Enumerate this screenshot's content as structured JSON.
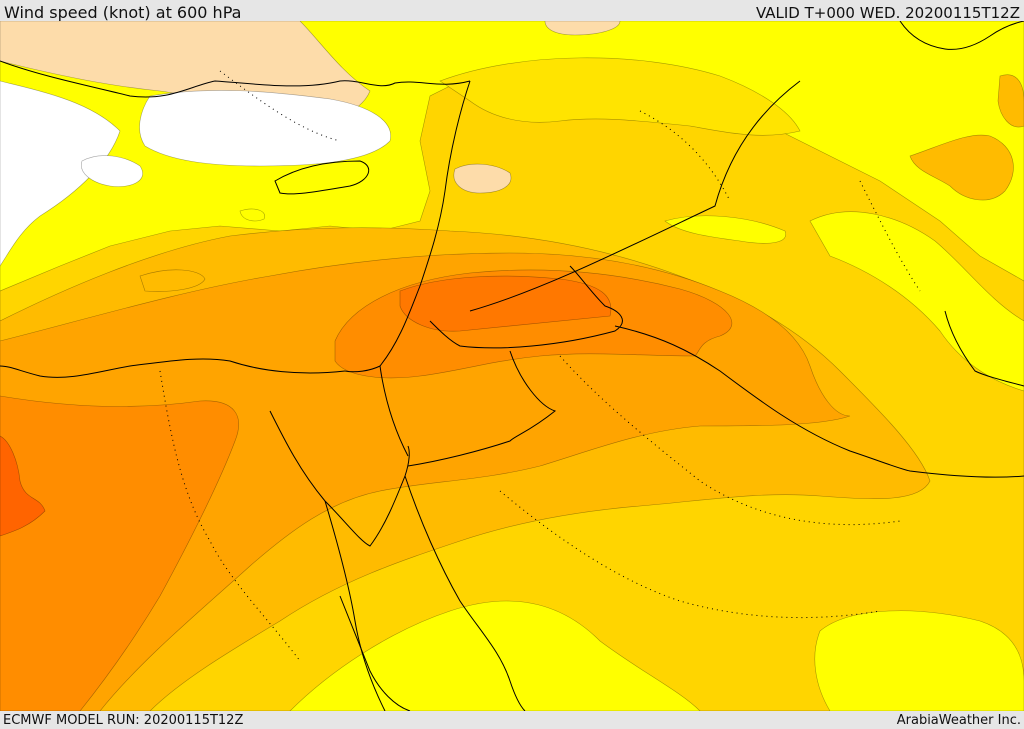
{
  "header": {
    "title": "Wind speed (knot) at 600 hPa",
    "valid": "VALID T+000 WED. 20200115T12Z"
  },
  "footer": {
    "model_run": "ECMWF MODEL RUN: 20200115T12Z",
    "credit": "ArabiaWeather Inc."
  },
  "map": {
    "variable": "wind speed",
    "level": "600 hPa",
    "unit": "knot",
    "colors": {
      "white": "#ffffff",
      "peach": "#fddcaa",
      "yellow_bright": "#ffff00",
      "yellow": "#ffe400",
      "gold": "#ffd500",
      "amber": "#ffbb00",
      "orange_light": "#ffa400",
      "orange": "#ff8d00",
      "orange_dark": "#ff7800",
      "red_orange": "#ff6400",
      "coastline": "#000000"
    }
  }
}
